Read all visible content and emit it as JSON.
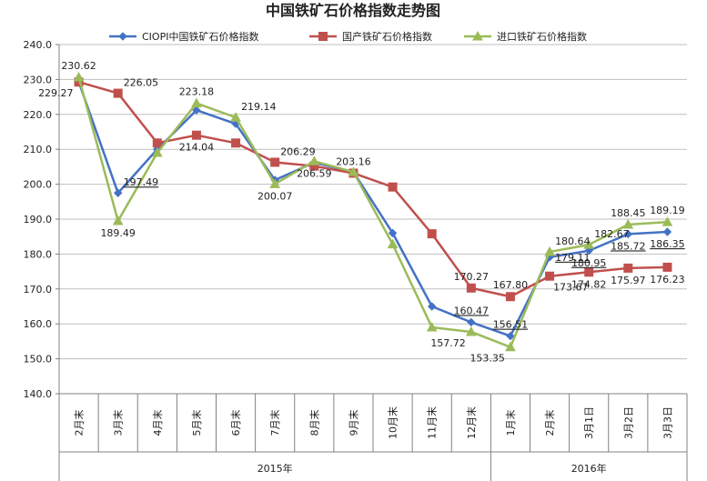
{
  "chart_data": {
    "type": "line",
    "title": "中国铁矿石价格指数走势图",
    "ylim": [
      140,
      240
    ],
    "yticks": [
      "140.0",
      "150.0",
      "160.0",
      "170.0",
      "180.0",
      "190.0",
      "200.0",
      "210.0",
      "220.0",
      "230.0",
      "240.0"
    ],
    "categories": [
      "2月末",
      "3月末",
      "4月末",
      "5月末",
      "6月末",
      "7月末",
      "8月末",
      "9月末",
      "10月末",
      "11月末",
      "12月末",
      "1月末",
      "2月末",
      "3月1日",
      "3月2日",
      "3月3日"
    ],
    "year_groups": [
      {
        "label": "2015年",
        "start": 0,
        "end": 10
      },
      {
        "label": "2016年",
        "start": 11,
        "end": 15
      }
    ],
    "grid": true,
    "legend_position": "top",
    "series": [
      {
        "name": "CIOPI中国铁矿石价格指数",
        "color": "#4472C4",
        "marker": "diamond",
        "values": [
          229.3,
          197.49,
          210.0,
          221.2,
          217.3,
          201.2,
          206.2,
          203.5,
          186.0,
          165.0,
          160.47,
          156.51,
          179.11,
          180.95,
          185.72,
          186.35
        ]
      },
      {
        "name": "国产铁矿石价格指数",
        "color": "#C0504D",
        "marker": "square",
        "values": [
          229.27,
          226.05,
          211.8,
          214.04,
          211.8,
          206.29,
          205.2,
          203.16,
          199.2,
          185.8,
          170.27,
          167.8,
          173.67,
          174.82,
          175.97,
          176.23
        ]
      },
      {
        "name": "进口铁矿石价格指数",
        "color": "#9BBB59",
        "marker": "triangle",
        "values": [
          230.62,
          189.49,
          209.0,
          223.18,
          219.14,
          200.07,
          206.59,
          203.5,
          182.8,
          159.0,
          157.72,
          153.35,
          180.64,
          182.67,
          188.45,
          189.19
        ]
      }
    ],
    "data_labels": [
      {
        "text": "230.62",
        "series": 2,
        "index": 0,
        "pos": "above"
      },
      {
        "text": "229.27",
        "series": 1,
        "index": 0,
        "pos": "below-left"
      },
      {
        "text": "226.05",
        "series": 1,
        "index": 1,
        "pos": "above-right"
      },
      {
        "text": "197.49",
        "series": 0,
        "index": 1,
        "pos": "above-right",
        "underline": true
      },
      {
        "text": "189.49",
        "series": 2,
        "index": 1,
        "pos": "below"
      },
      {
        "text": "223.18",
        "series": 2,
        "index": 3,
        "pos": "above"
      },
      {
        "text": "214.04",
        "series": 1,
        "index": 3,
        "pos": "below"
      },
      {
        "text": "219.14",
        "series": 2,
        "index": 4,
        "pos": "above-right"
      },
      {
        "text": "206.29",
        "series": 1,
        "index": 5,
        "pos": "above-right"
      },
      {
        "text": "200.07",
        "series": 2,
        "index": 5,
        "pos": "below"
      },
      {
        "text": "206.59",
        "series": 2,
        "index": 6,
        "pos": "below"
      },
      {
        "text": "203.16",
        "series": 1,
        "index": 7,
        "pos": "above"
      },
      {
        "text": "170.27",
        "series": 1,
        "index": 10,
        "pos": "above"
      },
      {
        "text": "160.47",
        "series": 0,
        "index": 10,
        "pos": "above",
        "underline": true
      },
      {
        "text": "157.72",
        "series": 2,
        "index": 10,
        "pos": "below-left"
      },
      {
        "text": "167.80",
        "series": 1,
        "index": 11,
        "pos": "above"
      },
      {
        "text": "156.51",
        "series": 0,
        "index": 11,
        "pos": "above",
        "underline": true
      },
      {
        "text": "153.35",
        "series": 2,
        "index": 11,
        "pos": "below-left"
      },
      {
        "text": "180.64",
        "series": 2,
        "index": 12,
        "pos": "above-right"
      },
      {
        "text": "179.11",
        "series": 0,
        "index": 12,
        "pos": "right",
        "underline": true
      },
      {
        "text": "173.67",
        "series": 1,
        "index": 12,
        "pos": "below-right"
      },
      {
        "text": "182.67",
        "series": 2,
        "index": 13,
        "pos": "above-right"
      },
      {
        "text": "180.95",
        "series": 0,
        "index": 13,
        "pos": "below",
        "underline": true
      },
      {
        "text": "174.82",
        "series": 1,
        "index": 13,
        "pos": "below"
      },
      {
        "text": "188.45",
        "series": 2,
        "index": 14,
        "pos": "above"
      },
      {
        "text": "185.72",
        "series": 0,
        "index": 14,
        "pos": "below",
        "underline": true
      },
      {
        "text": "175.97",
        "series": 1,
        "index": 14,
        "pos": "below"
      },
      {
        "text": "189.19",
        "series": 2,
        "index": 15,
        "pos": "above"
      },
      {
        "text": "186.35",
        "series": 0,
        "index": 15,
        "pos": "below",
        "underline": true
      },
      {
        "text": "176.23",
        "series": 1,
        "index": 15,
        "pos": "below"
      }
    ]
  }
}
